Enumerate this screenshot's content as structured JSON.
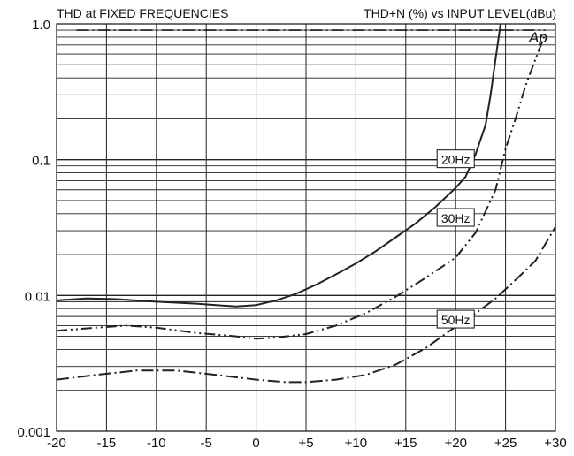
{
  "chart_data": {
    "type": "line",
    "title_left": "THD at FIXED FREQUENCIES",
    "title_right": "THD+N (%) vs INPUT LEVEL(dBu)",
    "logo": "Ap",
    "xlabel": "",
    "ylabel": "",
    "xlim": [
      -20,
      30
    ],
    "ylim": [
      0.001,
      1.0
    ],
    "y_scale": "log",
    "grid": true,
    "x_ticks": [
      -20,
      -15,
      -10,
      -5,
      0,
      5,
      10,
      15,
      20,
      25,
      30
    ],
    "x_tick_labels": [
      "-20",
      "-15",
      "-10",
      "-5",
      "0",
      "+5",
      "+10",
      "+15",
      "+20",
      "+25",
      "+30"
    ],
    "y_tick_values": [
      1.0,
      0.1,
      0.01,
      0.001
    ],
    "y_tick_labels": [
      "1.0",
      "0.1",
      "0.01",
      "0.001"
    ],
    "reference_line": {
      "y": 0.9,
      "x_start": -18,
      "x_end": 29
    },
    "series": [
      {
        "name": "20Hz",
        "style": "solid",
        "label_at": [
          20,
          0.1
        ],
        "x": [
          -20,
          -17,
          -14,
          -10,
          -6,
          -2,
          0,
          2,
          4,
          6,
          8,
          10,
          12,
          14,
          16,
          18,
          20,
          21,
          22,
          23,
          23.5,
          24,
          24.5
        ],
        "y": [
          0.0092,
          0.0095,
          0.0094,
          0.009,
          0.0087,
          0.0083,
          0.0085,
          0.0092,
          0.0103,
          0.012,
          0.0143,
          0.0172,
          0.0212,
          0.0268,
          0.034,
          0.045,
          0.062,
          0.075,
          0.11,
          0.18,
          0.3,
          0.55,
          1.0
        ]
      },
      {
        "name": "30Hz",
        "style": "dash-dot-dot",
        "label_at": [
          20,
          0.037
        ],
        "x": [
          -20,
          -16,
          -13,
          -10,
          -6,
          -2,
          0,
          2,
          5,
          8,
          11,
          14,
          17,
          20,
          22,
          24,
          25,
          26,
          27,
          28,
          29
        ],
        "y": [
          0.0055,
          0.0058,
          0.006,
          0.0058,
          0.0053,
          0.005,
          0.0048,
          0.0049,
          0.0052,
          0.006,
          0.0074,
          0.0098,
          0.0135,
          0.019,
          0.029,
          0.06,
          0.12,
          0.2,
          0.35,
          0.55,
          0.85
        ]
      },
      {
        "name": "50Hz",
        "style": "dash-dot",
        "label_at": [
          20,
          0.0066
        ],
        "x": [
          -20,
          -16,
          -12,
          -8,
          -4,
          0,
          3,
          5,
          8,
          11,
          14,
          17,
          20,
          22,
          24,
          26,
          28,
          30
        ],
        "y": [
          0.0024,
          0.0026,
          0.0028,
          0.0028,
          0.0026,
          0.0024,
          0.0023,
          0.0023,
          0.0024,
          0.0026,
          0.0031,
          0.0041,
          0.0059,
          0.0074,
          0.0095,
          0.013,
          0.018,
          0.032
        ]
      }
    ]
  }
}
